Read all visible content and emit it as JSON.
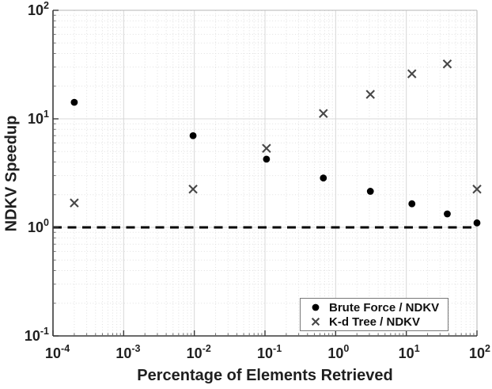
{
  "figure": {
    "background": "#ffffff"
  },
  "chart_data": {
    "type": "scatter",
    "title": "",
    "xlabel": "Percentage of Elements Retrieved",
    "ylabel": "NDKV Speedup",
    "xscale": "log",
    "yscale": "log",
    "xlim": [
      0.0001,
      100
    ],
    "ylim": [
      0.1,
      100
    ],
    "x_ticks": [
      "10^-4",
      "10^-3",
      "10^-2",
      "10^-1",
      "10^0",
      "10^1",
      "10^2"
    ],
    "y_ticks": [
      "10^-1",
      "10^0",
      "10^1",
      "10^2"
    ],
    "x_tick_exponents": [
      -4,
      -3,
      -2,
      -1,
      0,
      1,
      2
    ],
    "y_tick_exponents": [
      -1,
      0,
      1,
      2
    ],
    "grid": {
      "major": "solid",
      "minor": "dotted"
    },
    "reference_line": {
      "y": 1.0,
      "style": "dashed",
      "color": "#000000"
    },
    "legend_position": "bottom-right",
    "x": [
      0.0002,
      0.0096,
      0.105,
      0.67,
      3.1,
      12,
      38,
      100
    ],
    "series": [
      {
        "name": "Brute Force / NDKV",
        "marker": "filled-circle",
        "color": "#000000",
        "y": [
          14.2,
          7.0,
          4.25,
          2.85,
          2.15,
          1.65,
          1.33,
          1.1
        ]
      },
      {
        "name": "K-d Tree / NDKV",
        "marker": "x-cross",
        "color": "#474747",
        "y": [
          1.68,
          2.25,
          5.35,
          11.2,
          16.8,
          26.0,
          32.0,
          2.25
        ]
      }
    ]
  },
  "style": {
    "axis_color": "#3a3a3a",
    "box_light_color": "#b5b5b5",
    "grid_major_color": "#d8d8d8",
    "grid_minor_color": "#e0e0e0",
    "tick_label_color": "#1f1f1f"
  }
}
